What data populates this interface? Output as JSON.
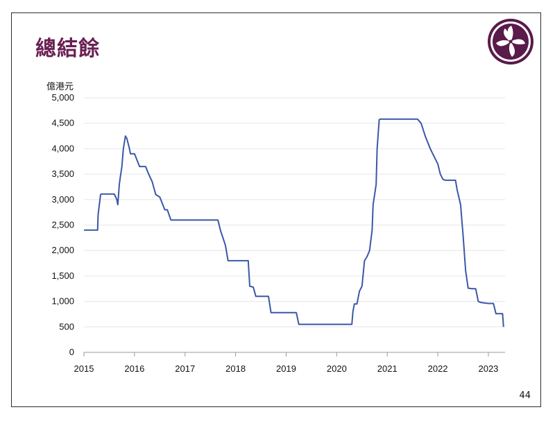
{
  "slide": {
    "title": "總結餘",
    "page_number": "44",
    "logo_icon": "bauhinia-flower-icon"
  },
  "colors": {
    "title": "#6b1f52",
    "line": "#3a57a8",
    "grid": "#e6e6e6",
    "logo": "#5a1a4a"
  },
  "chart_data": {
    "type": "line",
    "title": "總結餘",
    "ylabel": "億港元",
    "xlabel": "",
    "ylim": [
      0,
      5000
    ],
    "xlim": [
      2015,
      2023.33
    ],
    "y_ticks": [
      0,
      500,
      1000,
      1500,
      2000,
      2500,
      3000,
      3500,
      4000,
      4500,
      5000
    ],
    "y_tick_labels": [
      "0",
      "500",
      "1,000",
      "1,500",
      "2,000",
      "2,500",
      "3,000",
      "3,500",
      "4,000",
      "4,500",
      "5,000"
    ],
    "x_ticks": [
      2015,
      2016,
      2017,
      2018,
      2019,
      2020,
      2021,
      2022,
      2023
    ],
    "x_tick_labels": [
      "2015",
      "2016",
      "2017",
      "2018",
      "2019",
      "2020",
      "2021",
      "2022",
      "2023"
    ],
    "grid": "horizontal",
    "series": [
      {
        "x": [
          2015.0,
          2015.27,
          2015.28,
          2015.33,
          2015.35,
          2015.6,
          2015.65,
          2015.67,
          2015.7,
          2015.72,
          2015.75,
          2015.78,
          2015.82,
          2015.85,
          2015.9,
          2015.92,
          2016.0,
          2016.1,
          2016.22,
          2016.28,
          2016.35,
          2016.42,
          2016.5,
          2016.6,
          2016.65,
          2016.72,
          2017.0,
          2017.3,
          2017.5,
          2017.65,
          2017.7,
          2017.8,
          2017.85,
          2017.9,
          2018.0,
          2018.25,
          2018.28,
          2018.35,
          2018.4,
          2018.65,
          2018.7,
          2019.0,
          2019.2,
          2019.25,
          2019.5,
          2020.0,
          2020.3,
          2020.32,
          2020.35,
          2020.4,
          2020.45,
          2020.5,
          2020.55,
          2020.6,
          2020.65,
          2020.7,
          2020.72,
          2020.78,
          2020.8,
          2020.84,
          2020.86,
          2021.0,
          2021.3,
          2021.6,
          2021.67,
          2021.75,
          2021.85,
          2021.95,
          2022.0,
          2022.05,
          2022.1,
          2022.15,
          2022.35,
          2022.38,
          2022.45,
          2022.5,
          2022.55,
          2022.6,
          2022.68,
          2022.75,
          2022.8,
          2022.85,
          2023.0,
          2023.1,
          2023.15,
          2023.28,
          2023.3
        ],
        "y": [
          2400,
          2400,
          2700,
          3100,
          3110,
          3110,
          3000,
          2900,
          3300,
          3450,
          3650,
          4000,
          4250,
          4200,
          4000,
          3900,
          3900,
          3650,
          3650,
          3500,
          3350,
          3100,
          3050,
          2800,
          2800,
          2600,
          2600,
          2600,
          2600,
          2600,
          2400,
          2100,
          1800,
          1800,
          1800,
          1800,
          1300,
          1280,
          1100,
          1100,
          780,
          780,
          780,
          550,
          550,
          550,
          550,
          800,
          950,
          950,
          1200,
          1300,
          1800,
          1880,
          2000,
          2400,
          2900,
          3300,
          4000,
          4570,
          4580,
          4580,
          4580,
          4580,
          4500,
          4250,
          4000,
          3800,
          3700,
          3500,
          3400,
          3380,
          3380,
          3200,
          2900,
          2300,
          1600,
          1260,
          1250,
          1250,
          1000,
          980,
          960,
          960,
          760,
          760,
          500
        ]
      }
    ]
  }
}
